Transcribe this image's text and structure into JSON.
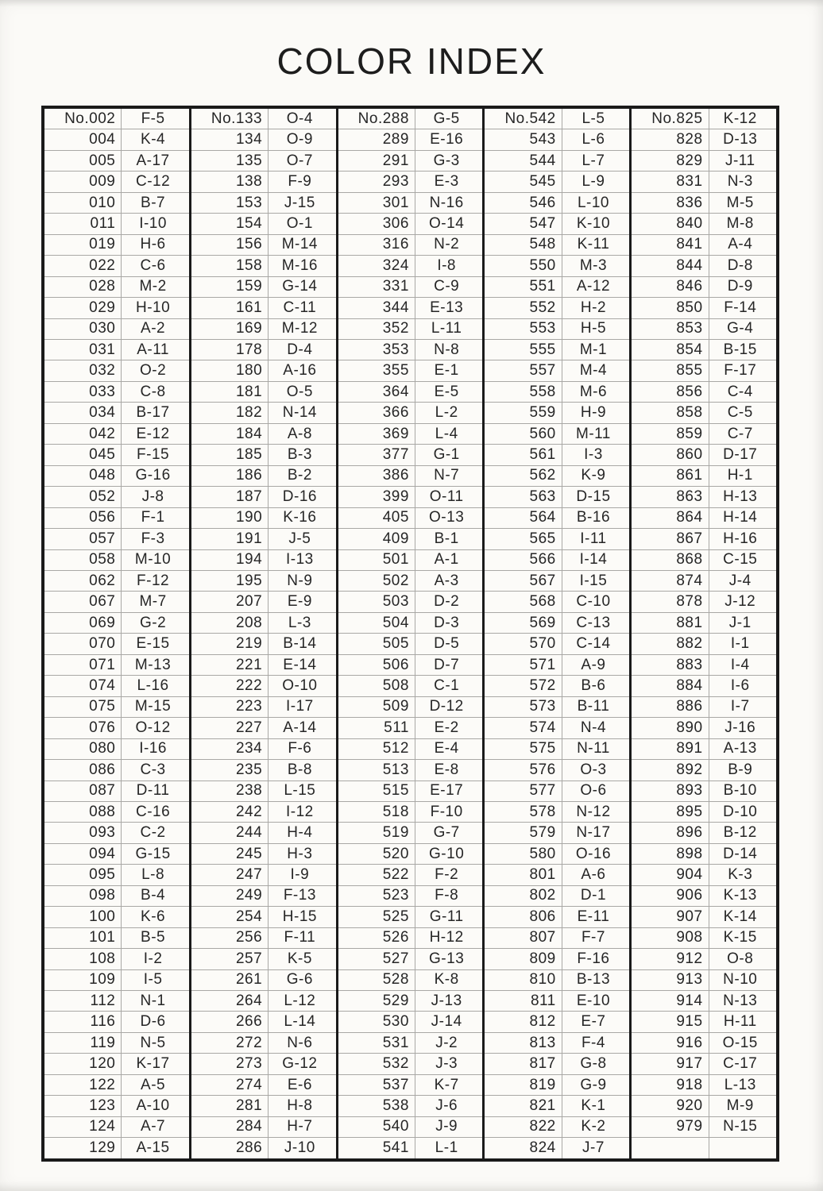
{
  "page": {
    "title": "COLOR INDEX"
  },
  "table": {
    "columns": [
      {
        "rows": [
          [
            "No.002",
            "F-5"
          ],
          [
            "004",
            "K-4"
          ],
          [
            "005",
            "A-17"
          ],
          [
            "009",
            "C-12"
          ],
          [
            "010",
            "B-7"
          ],
          [
            "011",
            "I-10"
          ],
          [
            "019",
            "H-6"
          ],
          [
            "022",
            "C-6"
          ],
          [
            "028",
            "M-2"
          ],
          [
            "029",
            "H-10"
          ],
          [
            "030",
            "A-2"
          ],
          [
            "031",
            "A-11"
          ],
          [
            "032",
            "O-2"
          ],
          [
            "033",
            "C-8"
          ],
          [
            "034",
            "B-17"
          ],
          [
            "042",
            "E-12"
          ],
          [
            "045",
            "F-15"
          ],
          [
            "048",
            "G-16"
          ],
          [
            "052",
            "J-8"
          ],
          [
            "056",
            "F-1"
          ],
          [
            "057",
            "F-3"
          ],
          [
            "058",
            "M-10"
          ],
          [
            "062",
            "F-12"
          ],
          [
            "067",
            "M-7"
          ],
          [
            "069",
            "G-2"
          ],
          [
            "070",
            "E-15"
          ],
          [
            "071",
            "M-13"
          ],
          [
            "074",
            "L-16"
          ],
          [
            "075",
            "M-15"
          ],
          [
            "076",
            "O-12"
          ],
          [
            "080",
            "I-16"
          ],
          [
            "086",
            "C-3"
          ],
          [
            "087",
            "D-11"
          ],
          [
            "088",
            "C-16"
          ],
          [
            "093",
            "C-2"
          ],
          [
            "094",
            "G-15"
          ],
          [
            "095",
            "L-8"
          ],
          [
            "098",
            "B-4"
          ],
          [
            "100",
            "K-6"
          ],
          [
            "101",
            "B-5"
          ],
          [
            "108",
            "I-2"
          ],
          [
            "109",
            "I-5"
          ],
          [
            "112",
            "N-1"
          ],
          [
            "116",
            "D-6"
          ],
          [
            "119",
            "N-5"
          ],
          [
            "120",
            "K-17"
          ],
          [
            "122",
            "A-5"
          ],
          [
            "123",
            "A-10"
          ],
          [
            "124",
            "A-7"
          ],
          [
            "129",
            "A-15"
          ]
        ]
      },
      {
        "rows": [
          [
            "No.133",
            "O-4"
          ],
          [
            "134",
            "O-9"
          ],
          [
            "135",
            "O-7"
          ],
          [
            "138",
            "F-9"
          ],
          [
            "153",
            "J-15"
          ],
          [
            "154",
            "O-1"
          ],
          [
            "156",
            "M-14"
          ],
          [
            "158",
            "M-16"
          ],
          [
            "159",
            "G-14"
          ],
          [
            "161",
            "C-11"
          ],
          [
            "169",
            "M-12"
          ],
          [
            "178",
            "D-4"
          ],
          [
            "180",
            "A-16"
          ],
          [
            "181",
            "O-5"
          ],
          [
            "182",
            "N-14"
          ],
          [
            "184",
            "A-8"
          ],
          [
            "185",
            "B-3"
          ],
          [
            "186",
            "B-2"
          ],
          [
            "187",
            "D-16"
          ],
          [
            "190",
            "K-16"
          ],
          [
            "191",
            "J-5"
          ],
          [
            "194",
            "I-13"
          ],
          [
            "195",
            "N-9"
          ],
          [
            "207",
            "E-9"
          ],
          [
            "208",
            "L-3"
          ],
          [
            "219",
            "B-14"
          ],
          [
            "221",
            "E-14"
          ],
          [
            "222",
            "O-10"
          ],
          [
            "223",
            "I-17"
          ],
          [
            "227",
            "A-14"
          ],
          [
            "234",
            "F-6"
          ],
          [
            "235",
            "B-8"
          ],
          [
            "238",
            "L-15"
          ],
          [
            "242",
            "I-12"
          ],
          [
            "244",
            "H-4"
          ],
          [
            "245",
            "H-3"
          ],
          [
            "247",
            "I-9"
          ],
          [
            "249",
            "F-13"
          ],
          [
            "254",
            "H-15"
          ],
          [
            "256",
            "F-11"
          ],
          [
            "257",
            "K-5"
          ],
          [
            "261",
            "G-6"
          ],
          [
            "264",
            "L-12"
          ],
          [
            "266",
            "L-14"
          ],
          [
            "272",
            "N-6"
          ],
          [
            "273",
            "G-12"
          ],
          [
            "274",
            "E-6"
          ],
          [
            "281",
            "H-8"
          ],
          [
            "284",
            "H-7"
          ],
          [
            "286",
            "J-10"
          ]
        ]
      },
      {
        "rows": [
          [
            "No.288",
            "G-5"
          ],
          [
            "289",
            "E-16"
          ],
          [
            "291",
            "G-3"
          ],
          [
            "293",
            "E-3"
          ],
          [
            "301",
            "N-16"
          ],
          [
            "306",
            "O-14"
          ],
          [
            "316",
            "N-2"
          ],
          [
            "324",
            "I-8"
          ],
          [
            "331",
            "C-9"
          ],
          [
            "344",
            "E-13"
          ],
          [
            "352",
            "L-11"
          ],
          [
            "353",
            "N-8"
          ],
          [
            "355",
            "E-1"
          ],
          [
            "364",
            "E-5"
          ],
          [
            "366",
            "L-2"
          ],
          [
            "369",
            "L-4"
          ],
          [
            "377",
            "G-1"
          ],
          [
            "386",
            "N-7"
          ],
          [
            "399",
            "O-11"
          ],
          [
            "405",
            "O-13"
          ],
          [
            "409",
            "B-1"
          ],
          [
            "501",
            "A-1"
          ],
          [
            "502",
            "A-3"
          ],
          [
            "503",
            "D-2"
          ],
          [
            "504",
            "D-3"
          ],
          [
            "505",
            "D-5"
          ],
          [
            "506",
            "D-7"
          ],
          [
            "508",
            "C-1"
          ],
          [
            "509",
            "D-12"
          ],
          [
            "511",
            "E-2"
          ],
          [
            "512",
            "E-4"
          ],
          [
            "513",
            "E-8"
          ],
          [
            "515",
            "E-17"
          ],
          [
            "518",
            "F-10"
          ],
          [
            "519",
            "G-7"
          ],
          [
            "520",
            "G-10"
          ],
          [
            "522",
            "F-2"
          ],
          [
            "523",
            "F-8"
          ],
          [
            "525",
            "G-11"
          ],
          [
            "526",
            "H-12"
          ],
          [
            "527",
            "G-13"
          ],
          [
            "528",
            "K-8"
          ],
          [
            "529",
            "J-13"
          ],
          [
            "530",
            "J-14"
          ],
          [
            "531",
            "J-2"
          ],
          [
            "532",
            "J-3"
          ],
          [
            "537",
            "K-7"
          ],
          [
            "538",
            "J-6"
          ],
          [
            "540",
            "J-9"
          ],
          [
            "541",
            "L-1"
          ]
        ]
      },
      {
        "rows": [
          [
            "No.542",
            "L-5"
          ],
          [
            "543",
            "L-6"
          ],
          [
            "544",
            "L-7"
          ],
          [
            "545",
            "L-9"
          ],
          [
            "546",
            "L-10"
          ],
          [
            "547",
            "K-10"
          ],
          [
            "548",
            "K-11"
          ],
          [
            "550",
            "M-3"
          ],
          [
            "551",
            "A-12"
          ],
          [
            "552",
            "H-2"
          ],
          [
            "553",
            "H-5"
          ],
          [
            "555",
            "M-1"
          ],
          [
            "557",
            "M-4"
          ],
          [
            "558",
            "M-6"
          ],
          [
            "559",
            "H-9"
          ],
          [
            "560",
            "M-11"
          ],
          [
            "561",
            "I-3"
          ],
          [
            "562",
            "K-9"
          ],
          [
            "563",
            "D-15"
          ],
          [
            "564",
            "B-16"
          ],
          [
            "565",
            "I-11"
          ],
          [
            "566",
            "I-14"
          ],
          [
            "567",
            "I-15"
          ],
          [
            "568",
            "C-10"
          ],
          [
            "569",
            "C-13"
          ],
          [
            "570",
            "C-14"
          ],
          [
            "571",
            "A-9"
          ],
          [
            "572",
            "B-6"
          ],
          [
            "573",
            "B-11"
          ],
          [
            "574",
            "N-4"
          ],
          [
            "575",
            "N-11"
          ],
          [
            "576",
            "O-3"
          ],
          [
            "577",
            "O-6"
          ],
          [
            "578",
            "N-12"
          ],
          [
            "579",
            "N-17"
          ],
          [
            "580",
            "O-16"
          ],
          [
            "801",
            "A-6"
          ],
          [
            "802",
            "D-1"
          ],
          [
            "806",
            "E-11"
          ],
          [
            "807",
            "F-7"
          ],
          [
            "809",
            "F-16"
          ],
          [
            "810",
            "B-13"
          ],
          [
            "811",
            "E-10"
          ],
          [
            "812",
            "E-7"
          ],
          [
            "813",
            "F-4"
          ],
          [
            "817",
            "G-8"
          ],
          [
            "819",
            "G-9"
          ],
          [
            "821",
            "K-1"
          ],
          [
            "822",
            "K-2"
          ],
          [
            "824",
            "J-7"
          ]
        ]
      },
      {
        "rows": [
          [
            "No.825",
            "K-12"
          ],
          [
            "828",
            "D-13"
          ],
          [
            "829",
            "J-11"
          ],
          [
            "831",
            "N-3"
          ],
          [
            "836",
            "M-5"
          ],
          [
            "840",
            "M-8"
          ],
          [
            "841",
            "A-4"
          ],
          [
            "844",
            "D-8"
          ],
          [
            "846",
            "D-9"
          ],
          [
            "850",
            "F-14"
          ],
          [
            "853",
            "G-4"
          ],
          [
            "854",
            "B-15"
          ],
          [
            "855",
            "F-17"
          ],
          [
            "856",
            "C-4"
          ],
          [
            "858",
            "C-5"
          ],
          [
            "859",
            "C-7"
          ],
          [
            "860",
            "D-17"
          ],
          [
            "861",
            "H-1"
          ],
          [
            "863",
            "H-13"
          ],
          [
            "864",
            "H-14"
          ],
          [
            "867",
            "H-16"
          ],
          [
            "868",
            "C-15"
          ],
          [
            "874",
            "J-4"
          ],
          [
            "878",
            "J-12"
          ],
          [
            "881",
            "J-1"
          ],
          [
            "882",
            "I-1"
          ],
          [
            "883",
            "I-4"
          ],
          [
            "884",
            "I-6"
          ],
          [
            "886",
            "I-7"
          ],
          [
            "890",
            "J-16"
          ],
          [
            "891",
            "A-13"
          ],
          [
            "892",
            "B-9"
          ],
          [
            "893",
            "B-10"
          ],
          [
            "895",
            "D-10"
          ],
          [
            "896",
            "B-12"
          ],
          [
            "898",
            "D-14"
          ],
          [
            "904",
            "K-3"
          ],
          [
            "906",
            "K-13"
          ],
          [
            "907",
            "K-14"
          ],
          [
            "908",
            "K-15"
          ],
          [
            "912",
            "O-8"
          ],
          [
            "913",
            "N-10"
          ],
          [
            "914",
            "N-13"
          ],
          [
            "915",
            "H-11"
          ],
          [
            "916",
            "O-15"
          ],
          [
            "917",
            "C-17"
          ],
          [
            "918",
            "L-13"
          ],
          [
            "920",
            "M-9"
          ],
          [
            "979",
            "N-15"
          ],
          [
            "",
            ""
          ]
        ]
      }
    ]
  }
}
